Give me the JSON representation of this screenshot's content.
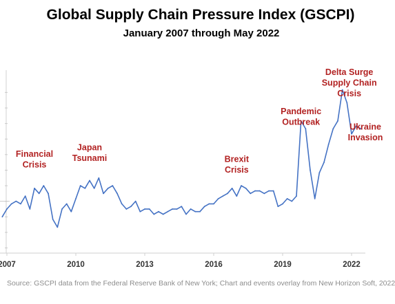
{
  "chart_data": {
    "type": "line",
    "title": "Global Supply Chain Pressure Index (GSCPI)",
    "subtitle": "January 2007 through May 2022",
    "xlabel": "",
    "ylabel": "",
    "xlim": [
      2006.7,
      2022.6
    ],
    "ylim": [
      -2.0,
      4.9
    ],
    "grid": false,
    "line_color": "#4472c4",
    "event_color": "#b22222",
    "x_ticks": [
      {
        "value": 2007,
        "label": "2007"
      },
      {
        "value": 2010,
        "label": "2010"
      },
      {
        "value": 2013,
        "label": "2013"
      },
      {
        "value": 2016,
        "label": "2016"
      },
      {
        "value": 2019,
        "label": "2019"
      },
      {
        "value": 2022,
        "label": "2022"
      }
    ],
    "y_ticks": [
      -1.8,
      -1.2,
      -0.6,
      0,
      0.6,
      1.2,
      1.8,
      2.4,
      3.0,
      3.6,
      4.2
    ],
    "series": [
      {
        "name": "",
        "x": [
          2006.8,
          2007.0,
          2007.2,
          2007.4,
          2007.6,
          2007.8,
          2008.0,
          2008.2,
          2008.4,
          2008.6,
          2008.8,
          2009.0,
          2009.2,
          2009.4,
          2009.6,
          2009.8,
          2010.0,
          2010.2,
          2010.4,
          2010.6,
          2010.8,
          2011.0,
          2011.2,
          2011.4,
          2011.6,
          2011.8,
          2012.0,
          2012.2,
          2012.4,
          2012.6,
          2012.8,
          2013.0,
          2013.2,
          2013.4,
          2013.6,
          2013.8,
          2014.0,
          2014.2,
          2014.4,
          2014.6,
          2014.8,
          2015.0,
          2015.2,
          2015.4,
          2015.6,
          2015.8,
          2016.0,
          2016.2,
          2016.4,
          2016.6,
          2016.8,
          2017.0,
          2017.2,
          2017.4,
          2017.6,
          2017.8,
          2018.0,
          2018.2,
          2018.4,
          2018.6,
          2018.8,
          2019.0,
          2019.2,
          2019.4,
          2019.6,
          2019.8,
          2020.0,
          2020.2,
          2020.4,
          2020.6,
          2020.8,
          2021.0,
          2021.2,
          2021.4,
          2021.6,
          2021.8,
          2022.0,
          2022.2,
          2022.4
        ],
        "y": [
          -0.6,
          -0.3,
          -0.1,
          0.0,
          -0.1,
          0.2,
          -0.3,
          0.5,
          0.3,
          0.6,
          0.3,
          -0.7,
          -1.0,
          -0.3,
          -0.1,
          -0.4,
          0.1,
          0.6,
          0.5,
          0.8,
          0.5,
          0.9,
          0.3,
          0.5,
          0.6,
          0.3,
          -0.1,
          -0.3,
          -0.2,
          0.0,
          -0.4,
          -0.3,
          -0.3,
          -0.5,
          -0.4,
          -0.5,
          -0.4,
          -0.3,
          -0.3,
          -0.2,
          -0.5,
          -0.3,
          -0.4,
          -0.4,
          -0.2,
          -0.1,
          -0.1,
          0.1,
          0.2,
          0.3,
          0.5,
          0.2,
          0.6,
          0.5,
          0.3,
          0.4,
          0.4,
          0.3,
          0.4,
          0.4,
          -0.2,
          -0.1,
          0.1,
          0.0,
          0.2,
          3.1,
          2.8,
          1.2,
          0.1,
          1.1,
          1.5,
          2.2,
          2.8,
          3.1,
          4.3,
          3.8,
          2.6,
          2.9,
          2.8
        ]
      }
    ],
    "annotations": [
      {
        "lines": [
          "Financial",
          "Crisis"
        ],
        "x": 2008.2,
        "y": 1.3
      },
      {
        "lines": [
          "Japan",
          "Tsunami"
        ],
        "x": 2010.6,
        "y": 1.55
      },
      {
        "lines": [
          "Brexit",
          "Crisis"
        ],
        "x": 2017.0,
        "y": 1.1
      },
      {
        "lines": [
          "Pandemic",
          "Outbreak"
        ],
        "x": 2019.8,
        "y": 2.95
      },
      {
        "lines": [
          "Delta Surge",
          "Supply Chain",
          "Crisis"
        ],
        "x": 2021.9,
        "y": 4.05
      },
      {
        "lines": [
          "Ukraine",
          "Invasion"
        ],
        "x": 2022.6,
        "y": 2.35
      }
    ]
  },
  "footer": {
    "source": "Source: GSCPI data from the Federal Reserve Bank of New York; Chart and events overlay from New Horizon Soft, 2022"
  }
}
